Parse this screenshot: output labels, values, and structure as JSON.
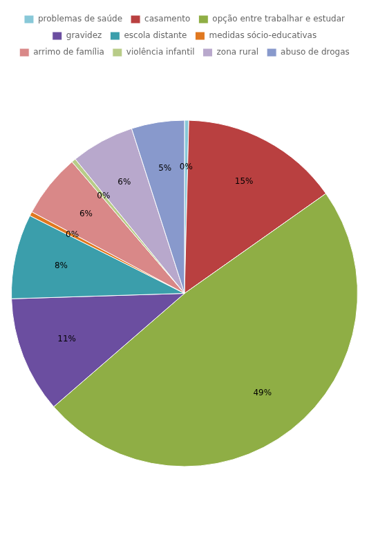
{
  "chart_data": {
    "type": "pie",
    "categories": [
      "problemas de saúde",
      "casamento",
      "opção entre trabalhar e estudar",
      "gravidez",
      "escola distante",
      "medidas sócio-educativas",
      "arrimo de família",
      "violência infantil",
      "zona rural",
      "abuso de drogas"
    ],
    "values": [
      0.4,
      15,
      49,
      11,
      8,
      0.4,
      6,
      0.4,
      6,
      5
    ],
    "value_labels": [
      "0%",
      "15%",
      "49%",
      "11%",
      "8%",
      "0%",
      "6%",
      "0%",
      "6%",
      "5%"
    ],
    "colors": [
      "#88c8d8",
      "#b94040",
      "#8fae45",
      "#6b4ea0",
      "#3b9eab",
      "#e07820",
      "#d98888",
      "#b8cc88",
      "#b8a8cc",
      "#8899cc"
    ],
    "legend": "top",
    "data_labels": true
  }
}
